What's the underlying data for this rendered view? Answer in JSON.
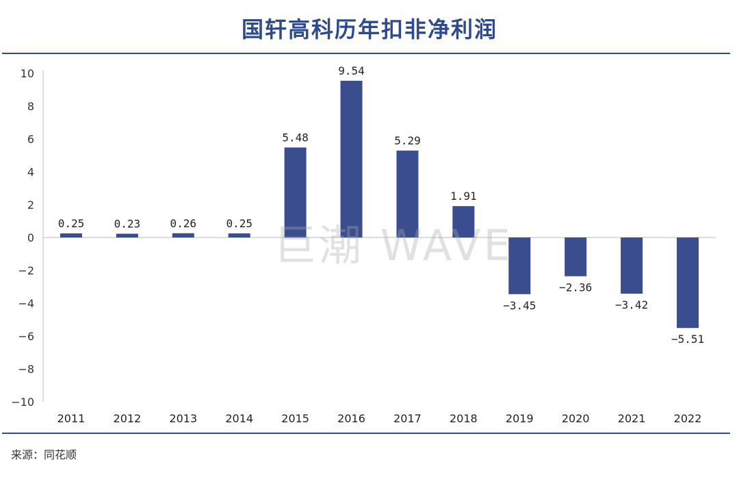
{
  "title": "国轩高科历年扣非净利润",
  "source": "来源：同花顺",
  "watermark": "巨潮 WAVE",
  "colors": {
    "bar": "#3a4d8f",
    "title": "#2e4a8c",
    "rule": "#2e4a8c",
    "axis": "#bbbbbb"
  },
  "chart_data": {
    "type": "bar",
    "categories": [
      "2011",
      "2012",
      "2013",
      "2014",
      "2015",
      "2016",
      "2017",
      "2018",
      "2019",
      "2020",
      "2021",
      "2022"
    ],
    "values": [
      0.25,
      0.23,
      0.26,
      0.25,
      5.48,
      9.54,
      5.29,
      1.91,
      -3.45,
      -2.36,
      -3.42,
      -5.51
    ],
    "data_labels": [
      "0.25",
      "0.23",
      "0.26",
      "0.25",
      "5.48",
      "9.54",
      "5.29",
      "1.91",
      "−3.45",
      "−2.36",
      "−3.42",
      "−5.51"
    ],
    "ylim": [
      -10,
      10
    ],
    "yticks": [
      10,
      8,
      6,
      4,
      2,
      0,
      -2,
      -4,
      -6,
      -8,
      -10
    ],
    "ytick_labels": [
      "10",
      "8",
      "6",
      "4",
      "2",
      "0",
      "−2",
      "−4",
      "−6",
      "−8",
      "−10"
    ],
    "grid": false,
    "legend": "none"
  }
}
